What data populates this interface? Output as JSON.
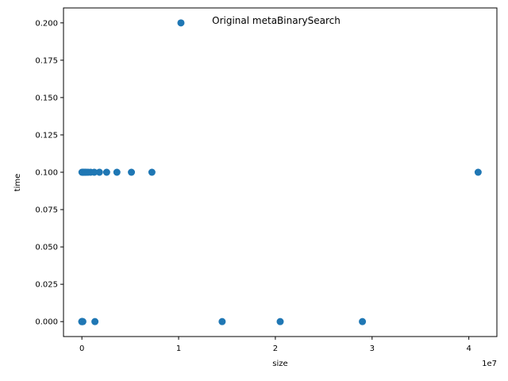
{
  "chart_data": {
    "type": "scatter",
    "title": "Original metaBinarySearch",
    "xlabel": "size",
    "ylabel": "time",
    "x_offset_label": "1e7",
    "x_scale": 10000000,
    "xlim": [
      -1900000,
      42900000
    ],
    "ylim": [
      -0.01,
      0.21
    ],
    "xticks": [
      0,
      1,
      2,
      3,
      4
    ],
    "xtick_labels": [
      "0",
      "1",
      "2",
      "3",
      "4"
    ],
    "yticks": [
      0.0,
      0.025,
      0.05,
      0.075,
      0.1,
      0.125,
      0.15,
      0.175,
      0.2
    ],
    "ytick_labels": [
      "0.000",
      "0.025",
      "0.050",
      "0.075",
      "0.100",
      "0.125",
      "0.150",
      "0.175",
      "0.200"
    ],
    "grid": false,
    "marker_color": "#1f77b4",
    "series": [
      {
        "points": [
          [
            10,
            0.0
          ],
          [
            100,
            0.0
          ],
          [
            1000,
            0.0
          ],
          [
            10000,
            0.0
          ],
          [
            50000,
            0.0
          ],
          [
            100000,
            0.0
          ],
          [
            1350000,
            0.0
          ],
          [
            14500000,
            0.0
          ],
          [
            20500000,
            0.0
          ],
          [
            29000000,
            0.0
          ],
          [
            10000,
            0.1
          ],
          [
            100000,
            0.1
          ],
          [
            200000,
            0.1
          ],
          [
            320000,
            0.1
          ],
          [
            450000,
            0.1
          ],
          [
            640000,
            0.1
          ],
          [
            900000,
            0.1
          ],
          [
            1280000,
            0.1
          ],
          [
            1810000,
            0.1
          ],
          [
            2560000,
            0.1
          ],
          [
            3620000,
            0.1
          ],
          [
            5120000,
            0.1
          ],
          [
            7240000,
            0.1
          ],
          [
            40960000,
            0.1
          ],
          [
            10240000,
            0.2
          ]
        ]
      }
    ]
  }
}
